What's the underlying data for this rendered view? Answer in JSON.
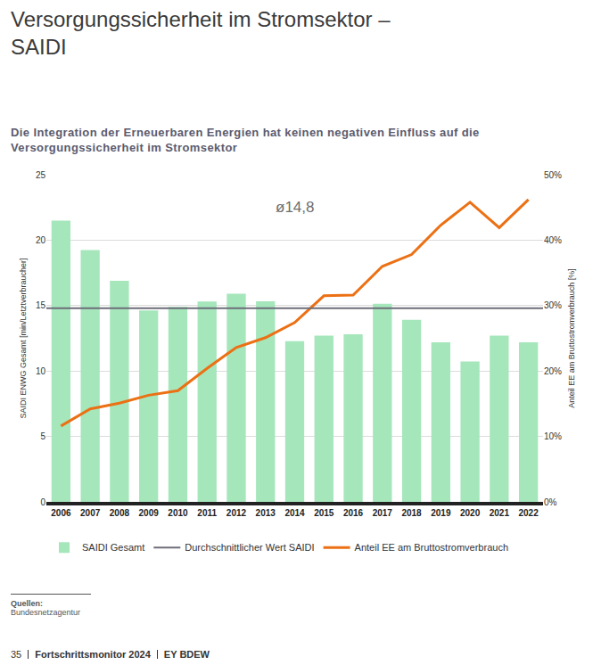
{
  "header": {
    "title": "Versorgungssicherheit im Stromsektor – SAIDI"
  },
  "chart_data": {
    "type": "bar",
    "title": "Die Integration der Erneuerbaren Energien hat keinen negativen Einfluss auf die Versorgungssicherheit im Stromsektor",
    "ylabel": "SAIDI ENWG Gesamt [min/Letztverbraucher]",
    "y2label": "Anteil EE am Bruttostromverbrauch [%]",
    "categories": [
      "2006",
      "2007",
      "2008",
      "2009",
      "2010",
      "2011",
      "2012",
      "2013",
      "2014",
      "2015",
      "2016",
      "2017",
      "2018",
      "2019",
      "2020",
      "2021",
      "2022"
    ],
    "series": [
      {
        "name": "SAIDI Gesamt",
        "type": "bar",
        "color": "#a5e6bb",
        "values": [
          21.5,
          19.25,
          16.89,
          14.63,
          14.9,
          15.31,
          15.91,
          15.32,
          12.28,
          12.7,
          12.8,
          15.14,
          13.91,
          12.2,
          10.73,
          12.7,
          12.2
        ]
      },
      {
        "name": "Durchschnittlicher Wert SAIDI",
        "type": "hline",
        "color": "#6e6e7a",
        "value": 14.8,
        "value_label": "ø14,8"
      },
      {
        "name": "Anteil EE am Bruttostromverbrauch",
        "type": "line",
        "axis": "y2",
        "color": "#ec7014",
        "values": [
          11.6,
          14.2,
          15.1,
          16.3,
          17.0,
          20.4,
          23.6,
          25.1,
          27.4,
          31.5,
          31.6,
          36.0,
          37.8,
          42.3,
          45.8,
          41.9,
          46.2
        ]
      }
    ],
    "ylim": [
      0,
      25
    ],
    "yticks": [
      0,
      5,
      10,
      15,
      20,
      25
    ],
    "y2lim": [
      0,
      50
    ],
    "y2ticks": [
      {
        "value": 0,
        "label": "0%"
      },
      {
        "value": 10,
        "label": "10%"
      },
      {
        "value": 20,
        "label": "20%"
      },
      {
        "value": 30,
        "label": "30%"
      },
      {
        "value": 40,
        "label": "40%"
      },
      {
        "value": 50,
        "label": "50%"
      }
    ],
    "grid": true,
    "legend": "bottom"
  },
  "sources": {
    "label": "Quellen:",
    "items": [
      "Bundesnetzagentur"
    ]
  },
  "footer": [
    "35",
    "Fortschrittsmonitor 2024",
    "EY BDEW"
  ]
}
